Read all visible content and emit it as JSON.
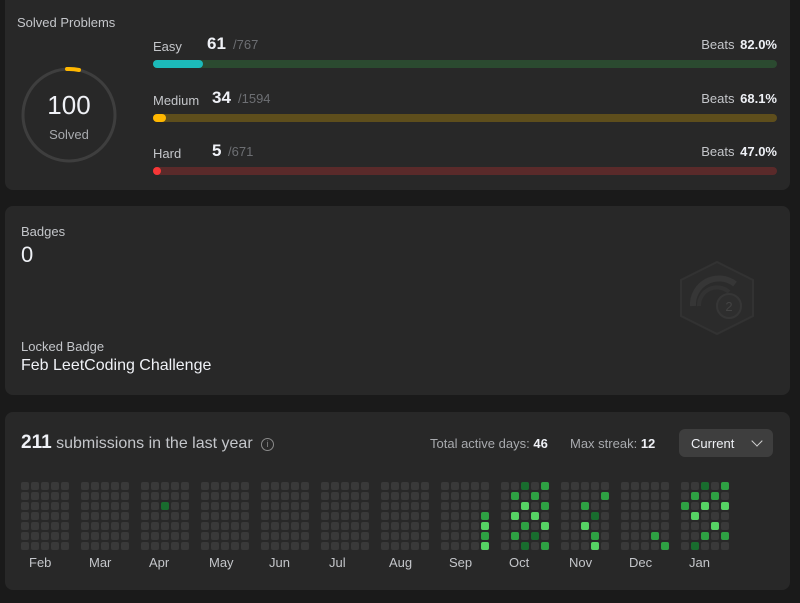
{
  "solved": {
    "title": "Solved Problems",
    "total": "100",
    "total_label": "Solved",
    "difficulties": [
      {
        "name": "Easy",
        "solved": "61",
        "total": "/767",
        "beats_label": "Beats",
        "beats": "82.0%",
        "fraction": 0.0795,
        "fill_color": "#1cbaba",
        "track_color": "#2b4a30"
      },
      {
        "name": "Medium",
        "solved": "34",
        "total": "/1594",
        "beats_label": "Beats",
        "beats": "68.1%",
        "fraction": 0.0213,
        "fill_color": "#ffb700",
        "track_color": "#5e4e1c"
      },
      {
        "name": "Hard",
        "solved": "5",
        "total": "/671",
        "beats_label": "Beats",
        "beats": "47.0%",
        "fraction": 0.0075,
        "fill_color": "#f63737",
        "track_color": "#5a2a2a"
      }
    ]
  },
  "badges": {
    "label": "Badges",
    "count": "0",
    "locked_label": "Locked Badge",
    "locked_name": "Feb LeetCoding Challenge",
    "badge_icon": "feb-challenge-badge-icon"
  },
  "submissions": {
    "count": "211",
    "text": "submissions in the last year",
    "active_label": "Total active days:",
    "active_days": "46",
    "streak_label": "Max streak:",
    "max_streak": "12",
    "period": "Current",
    "months": [
      "Feb",
      "Mar",
      "Apr",
      "May",
      "Jun",
      "Jul",
      "Aug",
      "Sep",
      "Oct",
      "Nov",
      "Dec",
      "Jan"
    ],
    "colors": {
      "empty": "#393939",
      "low": "#0e4429",
      "mid": "#196c2e",
      "high": "#2ea043",
      "max": "#56d364"
    }
  }
}
